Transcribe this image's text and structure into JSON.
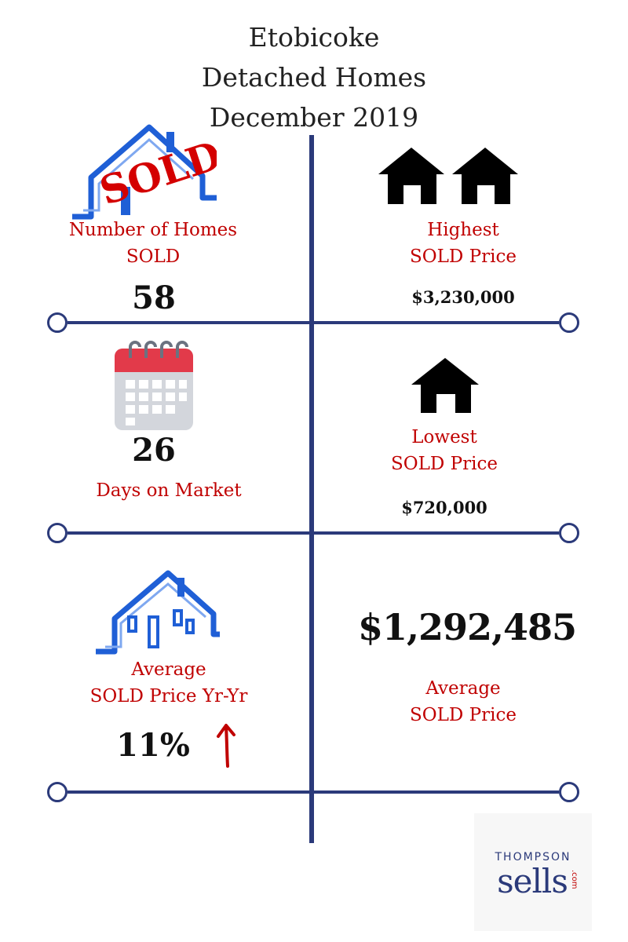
{
  "title": {
    "line1": "Etobicoke",
    "line2": "Detached Homes",
    "line3": "December 2019"
  },
  "homes_sold": {
    "icon": "sold-house-icon",
    "stamp": "SOLD",
    "label_line1": "Number of Homes",
    "label_line2": "SOLD",
    "value": "58"
  },
  "highest_price": {
    "icon": "two-houses-icon",
    "label_line1": "Highest",
    "label_line2": "SOLD Price",
    "value": "$3,230,000"
  },
  "days_on_market": {
    "icon": "calendar-icon",
    "value": "26",
    "label": "Days on Market"
  },
  "lowest_price": {
    "icon": "house-icon",
    "label_line1": "Lowest",
    "label_line2": "SOLD Price",
    "value": "$720,000"
  },
  "avg_price_change": {
    "icon": "house-outline-icon",
    "label_line1": "Average",
    "label_line2": "SOLD Price Yr-Yr",
    "value": "11%",
    "trend_icon": "up-arrow-icon"
  },
  "avg_price": {
    "value": "$1,292,485",
    "label_line1": "Average",
    "label_line2": "SOLD Price"
  },
  "brand": {
    "top": "THOMPSON",
    "main": "sells",
    "sub": ".com"
  },
  "colors": {
    "accent_red": "#c00000",
    "line_navy": "#2b3a7a",
    "house_blue": "#1f5fd6"
  }
}
